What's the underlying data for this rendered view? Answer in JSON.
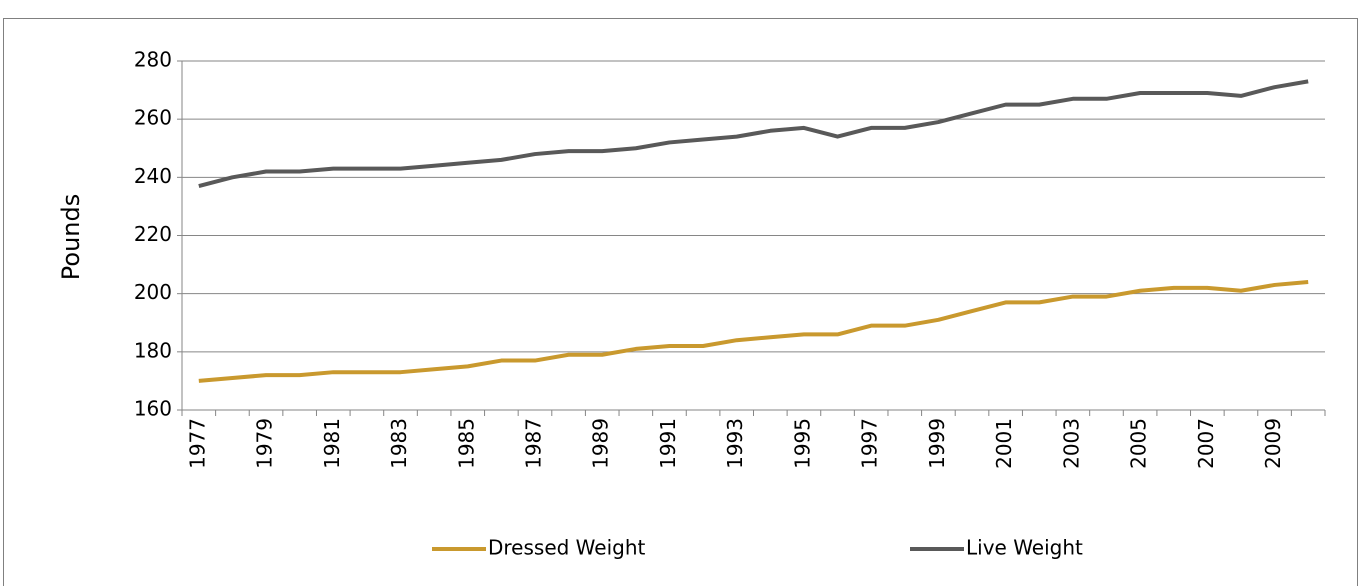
{
  "chart_data": {
    "type": "line",
    "y_label": "Pounds",
    "categories": [
      "1977",
      null,
      "1979",
      null,
      "1981",
      null,
      "1983",
      null,
      "1985",
      null,
      "1987",
      null,
      "1989",
      null,
      "1991",
      null,
      "1993",
      null,
      "1995",
      null,
      "1997",
      null,
      "1999",
      null,
      "2001",
      null,
      "2003",
      null,
      "2005",
      null,
      "2007",
      null,
      "2009",
      null
    ],
    "series": [
      {
        "name": "Dressed Weight",
        "color": "#c9992e",
        "values": [
          170,
          171,
          172,
          172,
          173,
          173,
          173,
          174,
          175,
          177,
          177,
          179,
          179,
          181,
          182,
          182,
          184,
          185,
          186,
          186,
          189,
          189,
          191,
          194,
          197,
          197,
          199,
          199,
          201,
          202,
          202,
          201,
          203,
          204
        ]
      },
      {
        "name": "Live Weight",
        "color": "#595959",
        "values": [
          237,
          240,
          242,
          242,
          243,
          243,
          243,
          244,
          245,
          246,
          248,
          249,
          249,
          250,
          252,
          253,
          254,
          256,
          257,
          254,
          257,
          257,
          259,
          262,
          265,
          265,
          267,
          267,
          269,
          269,
          269,
          268,
          271,
          273
        ]
      }
    ],
    "ylim": [
      160,
      280
    ],
    "yticks": [
      160,
      180,
      200,
      220,
      240,
      260,
      280
    ],
    "grid": true,
    "legend": "bottom"
  }
}
